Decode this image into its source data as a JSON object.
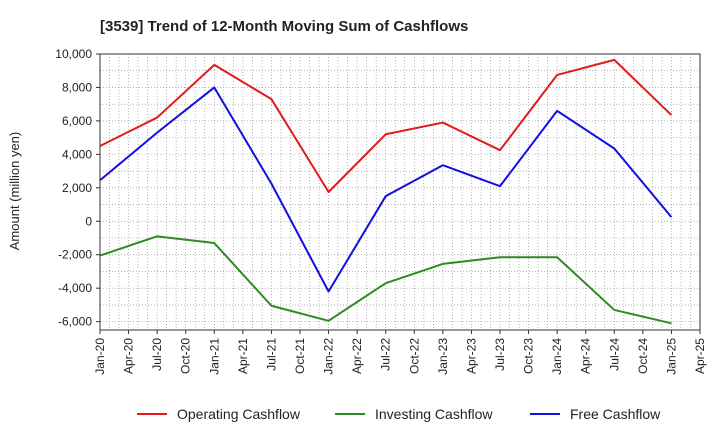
{
  "chart_data": {
    "type": "line",
    "title": "[3539]  Trend of 12-Month Moving Sum of Cashflows",
    "ylabel": "Amount (million yen)",
    "xlabel": "",
    "ylim": [
      -6500,
      10000
    ],
    "yticks": [
      10000,
      8000,
      6000,
      4000,
      2000,
      0,
      -2000,
      -4000,
      -6000
    ],
    "ytick_labels": [
      "10,000",
      "8,000",
      "6,000",
      "4,000",
      "2,000",
      "0",
      "-2,000",
      "-4,000",
      "-6,000"
    ],
    "x_labels": [
      "Jan-20",
      "Apr-20",
      "Jul-20",
      "Oct-20",
      "Jan-21",
      "Apr-21",
      "Jul-21",
      "Oct-21",
      "Jan-22",
      "Apr-22",
      "Jul-22",
      "Oct-22",
      "Jan-23",
      "Apr-23",
      "Jul-23",
      "Oct-23",
      "Jan-24",
      "Apr-24",
      "Jul-24",
      "Oct-24",
      "Jan-25",
      "Apr-25"
    ],
    "data_x": [
      "Jan-20",
      "Jul-20",
      "Jan-21",
      "Jul-21",
      "Jan-22",
      "Jul-22",
      "Jan-23",
      "Jul-23",
      "Jan-24",
      "Jul-24",
      "Jan-25"
    ],
    "grid": true,
    "legend_position": "bottom",
    "series": [
      {
        "name": "Operating Cashflow",
        "color": "#e31a1c",
        "values": [
          4500,
          6200,
          9350,
          7300,
          1750,
          5200,
          5900,
          4250,
          8750,
          9650,
          6350
        ]
      },
      {
        "name": "Investing Cashflow",
        "color": "#2e8b22",
        "values": [
          -2050,
          -900,
          -1300,
          -5050,
          -5950,
          -3700,
          -2550,
          -2150,
          -2150,
          -5300,
          -6100
        ]
      },
      {
        "name": "Free Cashflow",
        "color": "#1010e0",
        "values": [
          2450,
          5300,
          8000,
          2250,
          -4200,
          1500,
          3350,
          2100,
          6600,
          4350,
          250
        ]
      }
    ]
  }
}
